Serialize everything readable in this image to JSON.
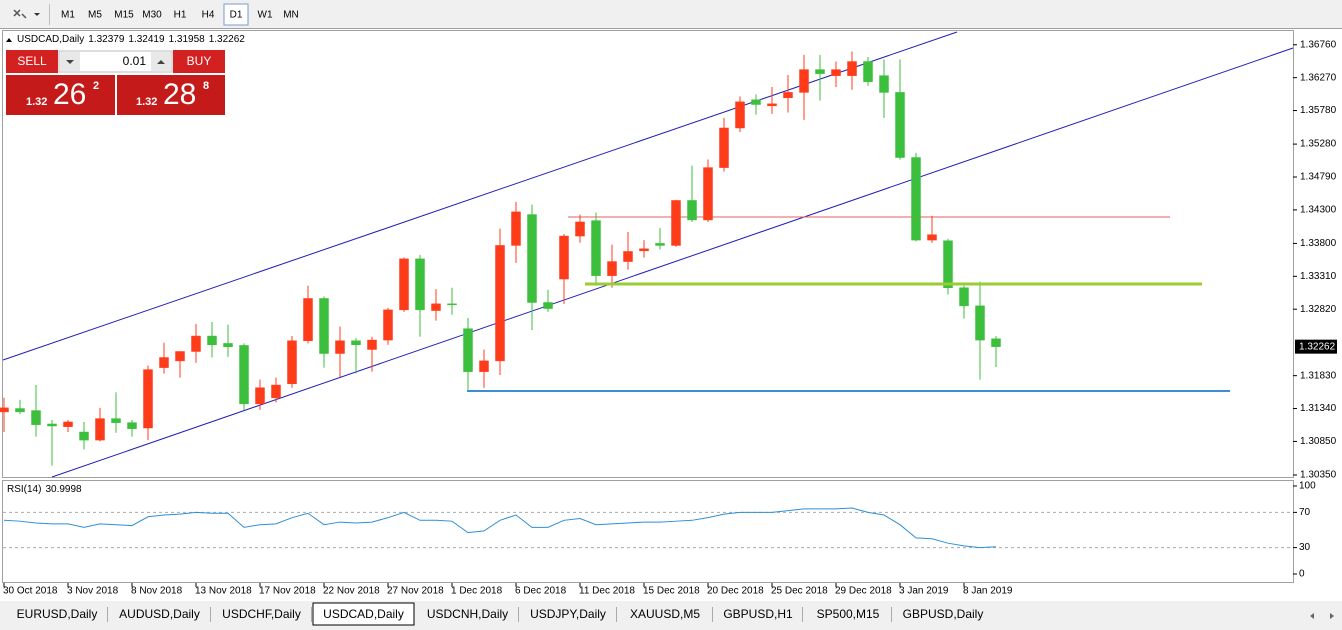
{
  "toolbar": {
    "timeframes": [
      "M1",
      "M5",
      "M15",
      "M30",
      "H1",
      "H4",
      "D1",
      "W1",
      "MN"
    ],
    "active": "D1"
  },
  "trade_panel": {
    "sell": "SELL",
    "lot": "0.01",
    "buy": "BUY",
    "bid": {
      "big": "1.32",
      "pips": "26",
      "point": "2"
    },
    "ask": {
      "big": "1.32",
      "pips": "28",
      "point": "8"
    }
  },
  "chart_data": [
    {
      "type": "candlestick",
      "title": "USDCAD,Daily",
      "x": [
        "30 Oct 2018",
        null,
        null,
        null,
        "3 Nov 2018",
        null,
        null,
        null,
        "8 Nov 2018",
        null,
        null,
        null,
        "13 Nov 2018",
        null,
        null,
        null,
        "17 Nov 2018",
        null,
        null,
        null,
        "22 Nov 2018",
        null,
        null,
        null,
        "27 Nov 2018",
        null,
        null,
        null,
        "1 Dec 2018",
        null,
        null,
        null,
        "6 Dec 2018",
        null,
        null,
        null,
        "11 Dec 2018",
        null,
        null,
        null,
        "15 Dec 2018",
        null,
        null,
        null,
        "20 Dec 2018",
        null,
        null,
        null,
        "25 Dec 2018",
        null,
        null,
        null,
        "29 Dec 2018",
        null,
        null,
        null,
        "3 Jan 2019",
        null,
        null,
        null,
        "8 Jan 2019",
        null,
        null
      ],
      "open": [
        1.3129,
        1.3134,
        1.3131,
        1.3111,
        1.3107,
        1.3099,
        1.3087,
        1.3119,
        1.3113,
        1.3105,
        1.3195,
        1.3205,
        1.3219,
        1.3242,
        1.3231,
        1.3228,
        1.3141,
        1.315,
        1.3171,
        1.3235,
        1.3298,
        1.3216,
        1.3235,
        1.3222,
        1.3236,
        1.3281,
        1.3357,
        1.328,
        1.329,
        1.3253,
        1.3189,
        1.3205,
        1.3377,
        1.3423,
        1.3292,
        1.3327,
        1.3391,
        1.3414,
        1.3332,
        1.3353,
        1.3369,
        1.338,
        1.3377,
        1.3444,
        1.3415,
        1.3493,
        1.3552,
        1.3594,
        1.3585,
        1.3597,
        1.3605,
        1.3639,
        1.363,
        1.363,
        1.3651,
        1.363,
        1.3605,
        1.3508,
        1.3385,
        1.3384,
        1.3314,
        1.3287,
        1.32379
      ],
      "high": [
        1.315,
        1.3147,
        1.3169,
        1.3117,
        1.3117,
        1.3114,
        1.3135,
        1.3158,
        1.3117,
        1.3198,
        1.3232,
        1.3219,
        1.326,
        1.3263,
        1.3259,
        1.3231,
        1.3177,
        1.318,
        1.3242,
        1.3317,
        1.3301,
        1.3256,
        1.3239,
        1.3241,
        1.3284,
        1.3359,
        1.3363,
        1.3312,
        1.3314,
        1.3269,
        1.3222,
        1.3402,
        1.3442,
        1.3438,
        1.3311,
        1.3394,
        1.3423,
        1.3426,
        1.3378,
        1.3397,
        1.3385,
        1.3403,
        1.3445,
        1.3496,
        1.3505,
        1.3567,
        1.3599,
        1.3602,
        1.3613,
        1.3631,
        1.3661,
        1.3661,
        1.3651,
        1.3666,
        1.3658,
        1.3654,
        1.3654,
        1.3515,
        1.3421,
        1.3387,
        1.3317,
        1.3323,
        1.32419
      ],
      "low": [
        1.3099,
        1.3126,
        1.3092,
        1.3049,
        1.3099,
        1.3073,
        1.3085,
        1.3098,
        1.3092,
        1.3087,
        1.3186,
        1.318,
        1.3202,
        1.321,
        1.3211,
        1.3132,
        1.3132,
        1.3143,
        1.3165,
        1.3231,
        1.3195,
        1.3181,
        1.3186,
        1.3189,
        1.3229,
        1.3278,
        1.3241,
        1.3265,
        1.3274,
        1.3162,
        1.3165,
        1.3184,
        1.3351,
        1.3251,
        1.3278,
        1.329,
        1.3381,
        1.3317,
        1.3314,
        1.3341,
        1.3359,
        1.3371,
        1.3375,
        1.3412,
        1.3412,
        1.3487,
        1.3546,
        1.3572,
        1.3573,
        1.3575,
        1.3564,
        1.3593,
        1.3613,
        1.3609,
        1.3615,
        1.3567,
        1.3505,
        1.3383,
        1.3381,
        1.3304,
        1.3268,
        1.3177,
        1.31958
      ],
      "close": [
        1.3135,
        1.3129,
        1.311,
        1.3108,
        1.3114,
        1.3087,
        1.3119,
        1.3113,
        1.3104,
        1.3192,
        1.321,
        1.3219,
        1.3242,
        1.3229,
        1.3226,
        1.3141,
        1.3165,
        1.3169,
        1.3235,
        1.3298,
        1.3216,
        1.3235,
        1.3229,
        1.3236,
        1.3281,
        1.3357,
        1.3281,
        1.329,
        1.3289,
        1.3189,
        1.3205,
        1.3377,
        1.3427,
        1.3292,
        1.3283,
        1.3391,
        1.3412,
        1.3332,
        1.3353,
        1.3368,
        1.3372,
        1.3377,
        1.3444,
        1.3415,
        1.3493,
        1.3552,
        1.3591,
        1.3587,
        1.3588,
        1.3605,
        1.3639,
        1.3633,
        1.3639,
        1.3651,
        1.3621,
        1.3605,
        1.3508,
        1.3385,
        1.3393,
        1.3314,
        1.3287,
        1.3236,
        1.32262
      ],
      "up_color": "#ff3c1a",
      "down_color": "#3cbf3c",
      "ylim": [
        1.3032,
        1.3698
      ],
      "yticks": [
        {
          "value": 1.3676,
          "label": "1.36760"
        },
        {
          "value": 1.3627,
          "label": "1.36270"
        },
        {
          "value": 1.3578,
          "label": "1.35780"
        },
        {
          "value": 1.3528,
          "label": "1.35280"
        },
        {
          "value": 1.3479,
          "label": "1.34790"
        },
        {
          "value": 1.343,
          "label": "1.34300"
        },
        {
          "value": 1.338,
          "label": "1.33800"
        },
        {
          "value": 1.3331,
          "label": "1.33310"
        },
        {
          "value": 1.3282,
          "label": "1.32820"
        },
        {
          "value": 1.3183,
          "label": "1.31830"
        },
        {
          "value": 1.3134,
          "label": "1.31340"
        },
        {
          "value": 1.3085,
          "label": "1.30850"
        },
        {
          "value": 1.3035,
          "label": "1.30350"
        }
      ],
      "grid": false
    },
    {
      "type": "line",
      "title": "RSI(14)",
      "color": "#2f8fd8",
      "values": [
        61,
        60,
        58,
        57,
        57,
        53,
        57,
        56,
        55,
        65,
        67,
        68,
        70,
        69,
        69,
        53,
        56,
        57,
        64,
        69,
        56,
        59,
        58,
        59,
        64,
        70,
        61,
        61,
        60,
        47,
        49,
        61,
        67,
        53,
        53,
        61,
        63,
        56,
        57,
        58,
        59,
        59,
        60,
        61,
        64,
        68,
        70,
        70,
        70,
        72,
        74,
        74,
        74,
        75,
        70,
        67,
        56,
        41,
        40,
        35,
        32,
        30,
        30.9998
      ],
      "ylim": [
        -9.1,
        106.8
      ],
      "yticks": [
        100,
        70,
        30,
        0
      ]
    }
  ],
  "tabs": [
    "EURUSD,Daily",
    "AUDUSD,Daily",
    "USDCHF,Daily",
    "USDCAD,Daily",
    "USDCNH,Daily",
    "USDJPY,Daily",
    "XAUUSD,M5",
    "GBPUSD,H1",
    "SP500,M15",
    "GBPUSD,Daily"
  ],
  "active_tab": "USDCAD,Daily"
}
